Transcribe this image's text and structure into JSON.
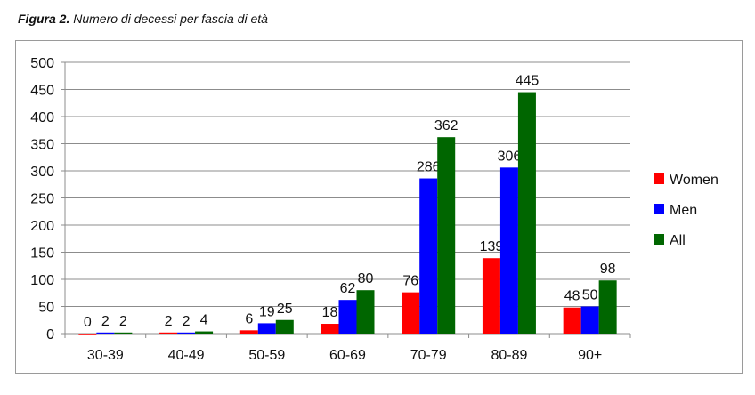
{
  "caption": {
    "label": "Figura 2.",
    "text": "Numero di decessi per fascia di età"
  },
  "chart_data": {
    "type": "bar",
    "title": "",
    "xlabel": "",
    "ylabel": "",
    "ylim": [
      0,
      500
    ],
    "yticks": [
      "0",
      "50",
      "100",
      "150",
      "200",
      "250",
      "300",
      "350",
      "400",
      "450",
      "500"
    ],
    "grid": true,
    "legend_position": "right",
    "categories": [
      "30-39",
      "40-49",
      "50-59",
      "60-69",
      "70-79",
      "80-89",
      "90+"
    ],
    "series": [
      {
        "name": "Women",
        "color": "#ff0000",
        "values": [
          0,
          2,
          6,
          18,
          76,
          139,
          48
        ]
      },
      {
        "name": "Men",
        "color": "#0000ff",
        "values": [
          2,
          2,
          19,
          62,
          286,
          306,
          50
        ]
      },
      {
        "name": "All",
        "color": "#006600",
        "values": [
          2,
          4,
          25,
          80,
          362,
          445,
          98
        ]
      }
    ]
  }
}
